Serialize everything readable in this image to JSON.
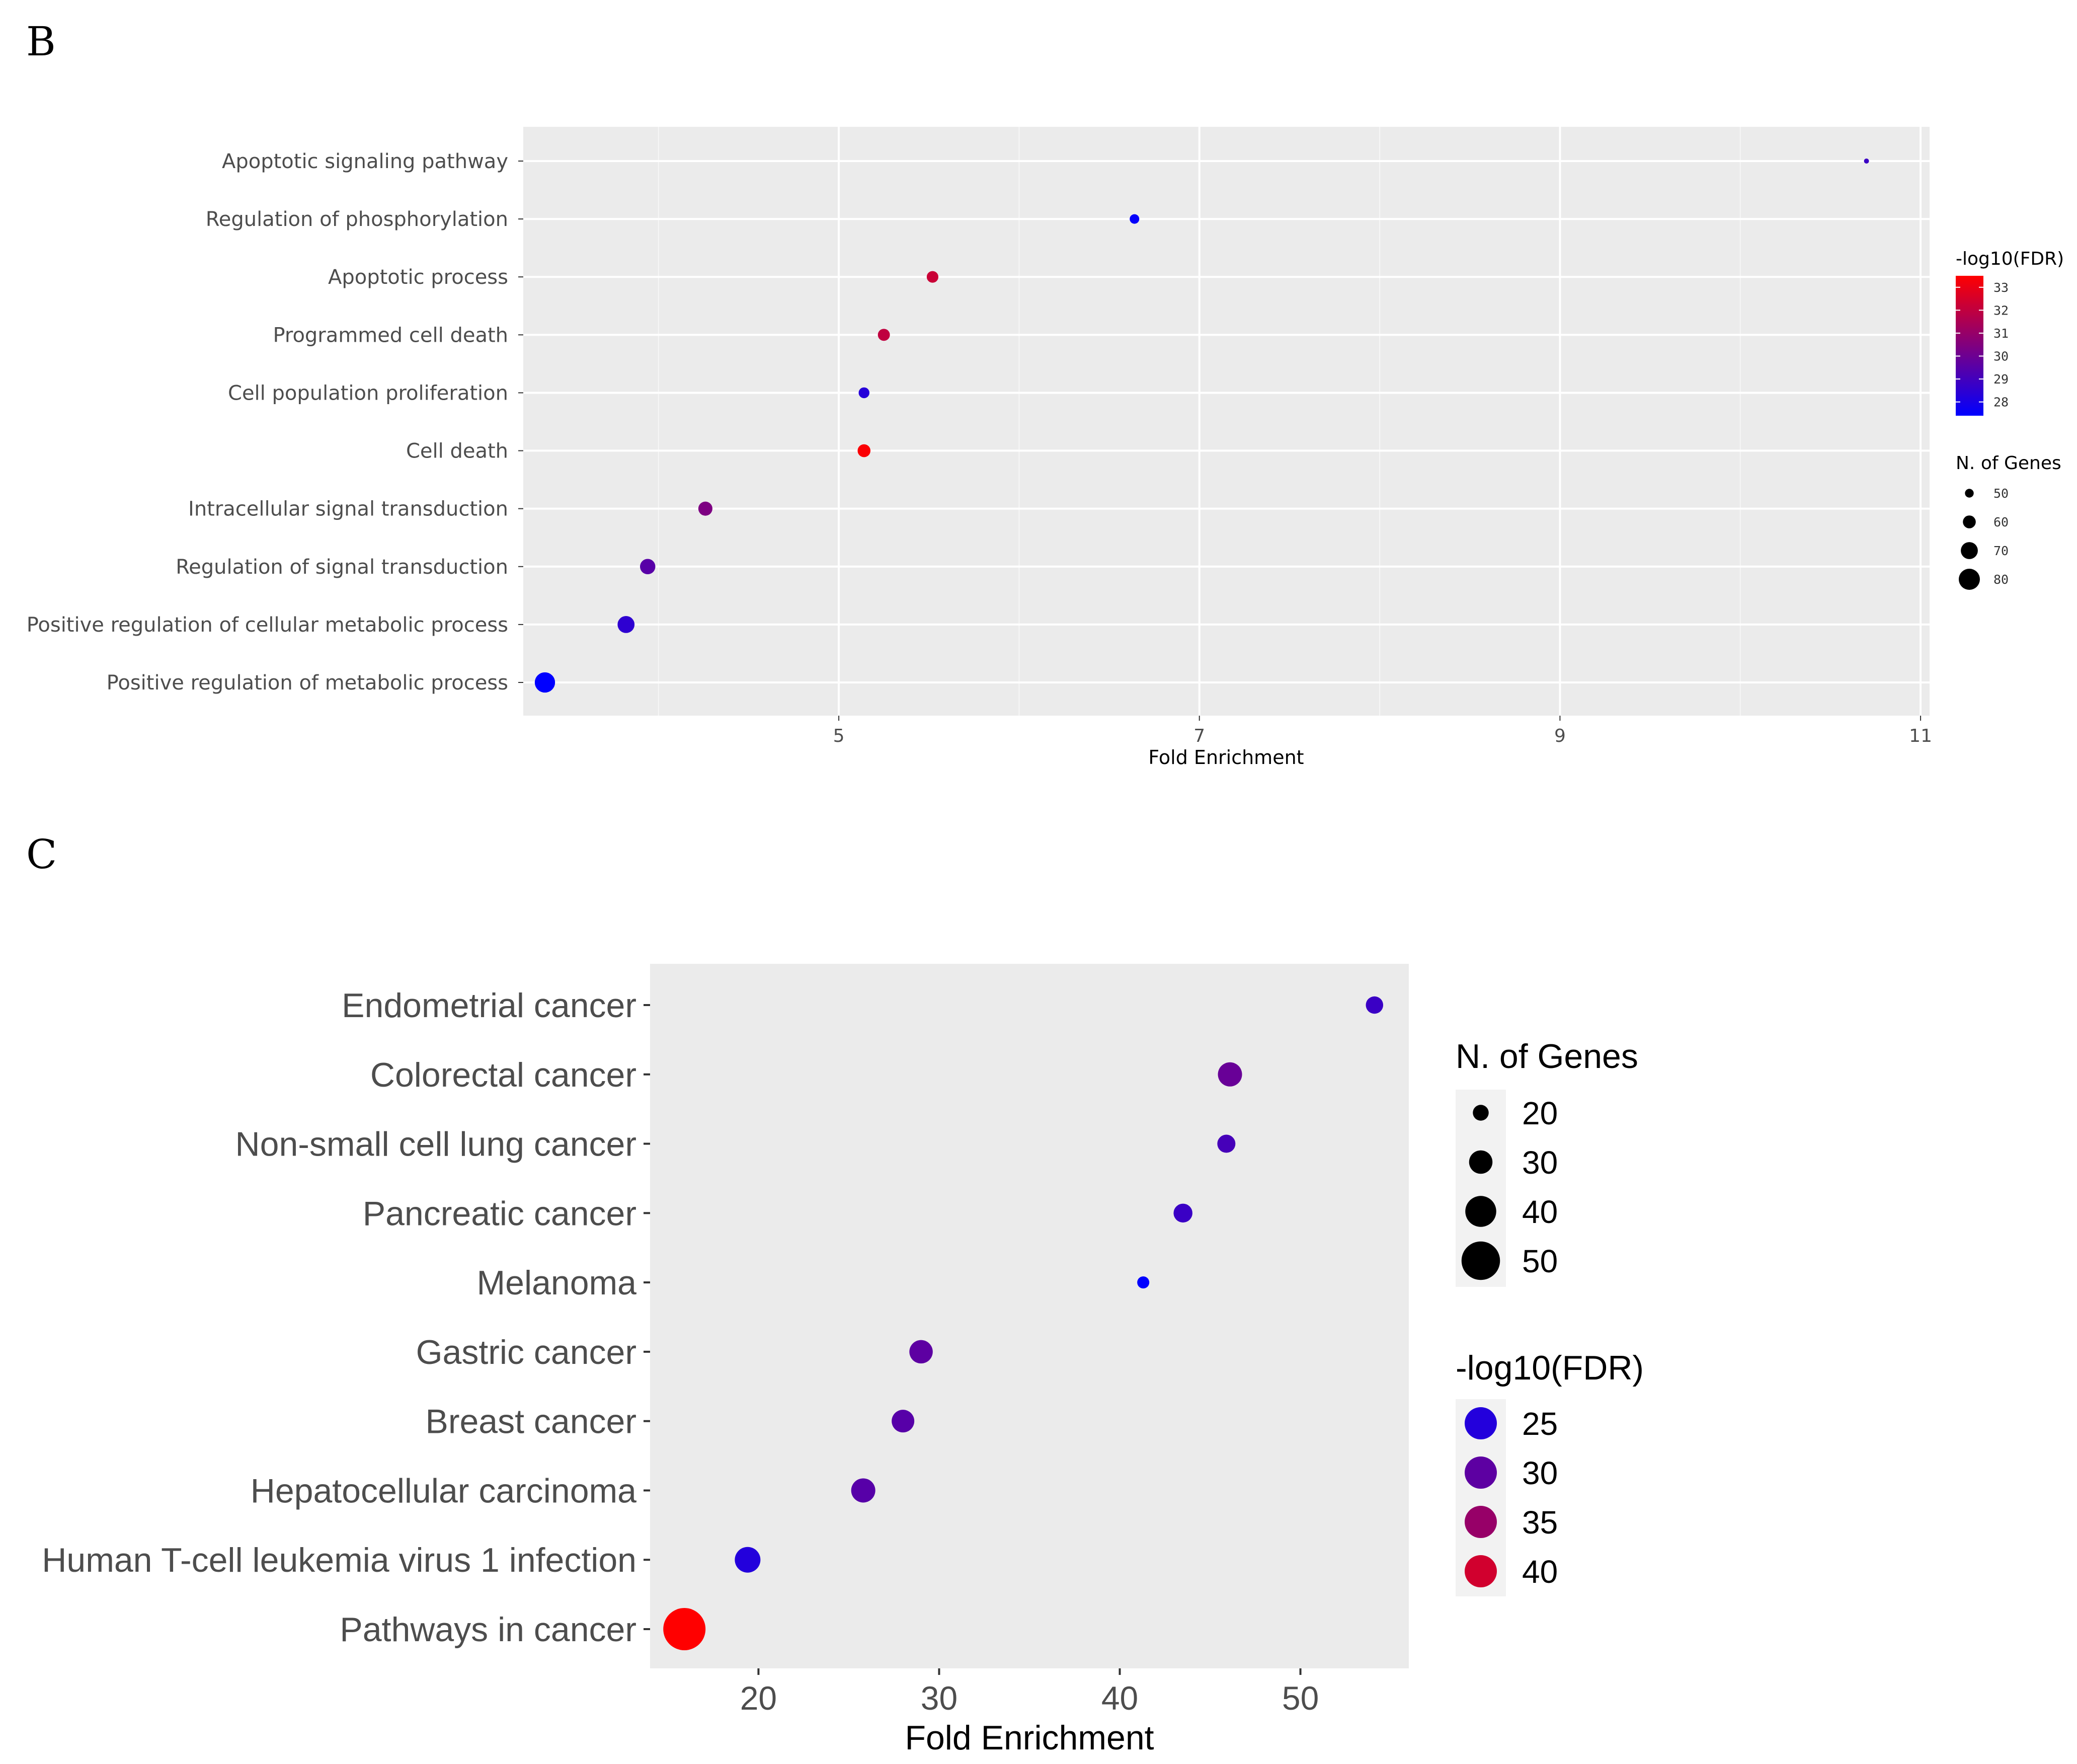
{
  "panels": {
    "b_label": "B",
    "c_label": "C"
  },
  "chart_data": [
    {
      "panel": "B",
      "type": "scatter",
      "title": "",
      "xlabel": "Fold Enrichment",
      "ylabel": "",
      "xlim": [
        3.25,
        11.05
      ],
      "xticks": [
        5,
        7,
        9,
        11
      ],
      "grid": true,
      "categories": [
        "Apoptotic signaling pathway",
        "Regulation of phosphorylation",
        "Apoptotic process",
        "Programmed cell death",
        "Cell population proliferation",
        "Cell death",
        "Intracellular signal transduction",
        "Regulation of signal transduction",
        "Positive regulation of cellular metabolic process",
        "Positive regulation of metabolic process"
      ],
      "x": [
        10.7,
        6.64,
        5.52,
        5.25,
        5.14,
        5.14,
        4.26,
        3.94,
        3.82,
        3.37
      ],
      "n_genes": [
        41,
        52,
        57,
        58,
        55,
        60,
        63,
        66,
        70,
        78
      ],
      "neg_log10_fdr": [
        28.8,
        27.5,
        32.2,
        32.0,
        28.3,
        33.4,
        30.4,
        29.5,
        28.5,
        27.4
      ],
      "legend_color": {
        "title": "-log10(FDR)",
        "ticks": [
          "33",
          "32",
          "31",
          "30",
          "29",
          "28"
        ],
        "range": [
          27.4,
          33.5
        ],
        "low_color": "#0000ff",
        "high_color": "#ff0000"
      },
      "legend_size": {
        "title": "N. of Genes",
        "ticks": [
          "50",
          "60",
          "70",
          "80"
        ]
      },
      "legend_position": "right"
    },
    {
      "panel": "C",
      "type": "scatter",
      "title": "",
      "xlabel": "Fold Enrichment",
      "ylabel": "",
      "xlim": [
        14,
        56
      ],
      "xticks": [
        20,
        30,
        40,
        50
      ],
      "grid": false,
      "categories": [
        "Endometrial cancer",
        "Colorectal cancer",
        "Non-small cell lung cancer",
        "Pancreatic cancer",
        "Melanoma",
        "Gastric cancer",
        "Breast cancer",
        "Hepatocellular carcinoma",
        "Human T-cell leukemia virus 1 infection",
        "Pathways in cancer"
      ],
      "x": [
        54.1,
        46.1,
        45.9,
        43.5,
        41.3,
        29.0,
        28.0,
        25.8,
        19.4,
        15.9
      ],
      "n_genes": [
        22,
        31,
        23,
        24,
        15,
        30,
        29,
        31,
        33,
        55
      ],
      "neg_log10_fdr": [
        27.0,
        31.0,
        28.0,
        27.0,
        22.0,
        30.0,
        29.5,
        29.5,
        25.0,
        44.0
      ],
      "legend_size": {
        "title": "N. of Genes",
        "ticks": [
          "20",
          "30",
          "40",
          "50"
        ]
      },
      "legend_color": {
        "title": "-log10(FDR)",
        "ticks": [
          "25",
          "30",
          "35",
          "40"
        ],
        "range": [
          22,
          44
        ],
        "low_color": "#0000ff",
        "high_color": "#ff0000"
      },
      "legend_position": "right"
    }
  ]
}
